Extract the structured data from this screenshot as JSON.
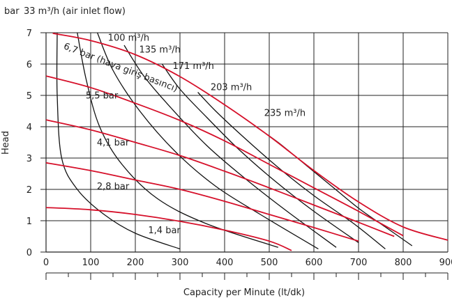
{
  "chart_data": {
    "type": "line",
    "title": "",
    "top_label_unit": "bar",
    "top_label_note": "33 m³/h (air inlet flow)",
    "xlabel": "Capacity per Minute (lt/dk)",
    "ylabel": "Head",
    "xlim": [
      0,
      900
    ],
    "ylim": [
      0,
      7
    ],
    "x_ticks": [
      0,
      100,
      200,
      300,
      400,
      500,
      600,
      700,
      800,
      900
    ],
    "y_ticks": [
      0,
      1,
      2,
      3,
      4,
      5,
      6,
      7
    ],
    "grid": true,
    "colors": {
      "pressure": "#d6102a",
      "airflow": "#111111",
      "grid": "#222222"
    },
    "pressure_curves": [
      {
        "label": "6,7 bar (hava giriş basıncı)",
        "points": [
          [
            15,
            6.98
          ],
          [
            100,
            6.75
          ],
          [
            200,
            6.3
          ],
          [
            300,
            5.6
          ],
          [
            400,
            4.7
          ],
          [
            500,
            3.7
          ],
          [
            600,
            2.6
          ],
          [
            700,
            1.6
          ],
          [
            800,
            0.8
          ],
          [
            900,
            0.38
          ]
        ]
      },
      {
        "label": "5,5 bar",
        "points": [
          [
            0,
            5.62
          ],
          [
            100,
            5.25
          ],
          [
            200,
            4.75
          ],
          [
            300,
            4.2
          ],
          [
            400,
            3.55
          ],
          [
            500,
            2.8
          ],
          [
            600,
            2.05
          ],
          [
            700,
            1.3
          ],
          [
            800,
            0.52
          ]
        ]
      },
      {
        "label": "4,1 bar",
        "points": [
          [
            0,
            4.22
          ],
          [
            100,
            3.9
          ],
          [
            200,
            3.5
          ],
          [
            300,
            3.08
          ],
          [
            400,
            2.58
          ],
          [
            500,
            2.05
          ],
          [
            600,
            1.5
          ],
          [
            700,
            0.95
          ],
          [
            780,
            0.5
          ]
        ]
      },
      {
        "label": "2,8 bar",
        "points": [
          [
            0,
            2.85
          ],
          [
            100,
            2.6
          ],
          [
            200,
            2.3
          ],
          [
            300,
            2.0
          ],
          [
            400,
            1.62
          ],
          [
            500,
            1.2
          ],
          [
            600,
            0.78
          ],
          [
            700,
            0.35
          ]
        ]
      },
      {
        "label": "1,4 bar",
        "points": [
          [
            0,
            1.42
          ],
          [
            100,
            1.35
          ],
          [
            200,
            1.2
          ],
          [
            300,
            0.98
          ],
          [
            400,
            0.7
          ],
          [
            500,
            0.35
          ],
          [
            550,
            0.05
          ]
        ]
      }
    ],
    "airflow_curves": [
      {
        "label": "33 m³/h",
        "points": [
          [
            25,
            7.0
          ],
          [
            25,
            5.0
          ],
          [
            35,
            3.0
          ],
          [
            70,
            2.0
          ],
          [
            130,
            1.2
          ],
          [
            200,
            0.6
          ],
          [
            300,
            0.1
          ]
        ]
      },
      {
        "label": "",
        "points": [
          [
            70,
            7.0
          ],
          [
            90,
            5.5
          ],
          [
            120,
            4.0
          ],
          [
            170,
            2.8
          ],
          [
            250,
            1.7
          ],
          [
            360,
            0.9
          ],
          [
            520,
            0.15
          ]
        ]
      },
      {
        "label": "100 m³/h",
        "points": [
          [
            115,
            7.0
          ],
          [
            150,
            5.8
          ],
          [
            210,
            4.5
          ],
          [
            290,
            3.2
          ],
          [
            380,
            2.1
          ],
          [
            480,
            1.2
          ],
          [
            610,
            0.1
          ]
        ]
      },
      {
        "label": "135 m³/h",
        "points": [
          [
            175,
            6.6
          ],
          [
            220,
            5.6
          ],
          [
            280,
            4.6
          ],
          [
            360,
            3.4
          ],
          [
            450,
            2.3
          ],
          [
            540,
            1.3
          ],
          [
            650,
            0.15
          ]
        ]
      },
      {
        "label": "171 m³/h",
        "points": [
          [
            260,
            6.0
          ],
          [
            300,
            5.2
          ],
          [
            360,
            4.3
          ],
          [
            430,
            3.3
          ],
          [
            510,
            2.3
          ],
          [
            600,
            1.3
          ],
          [
            700,
            0.3
          ]
        ]
      },
      {
        "label": "203 m³/h",
        "points": [
          [
            340,
            5.1
          ],
          [
            380,
            4.5
          ],
          [
            440,
            3.7
          ],
          [
            520,
            2.7
          ],
          [
            600,
            1.8
          ],
          [
            690,
            0.9
          ],
          [
            760,
            0.1
          ]
        ]
      },
      {
        "label": "235 m³/h",
        "points": [
          [
            470,
            4.0
          ],
          [
            520,
            3.5
          ],
          [
            580,
            2.8
          ],
          [
            640,
            2.1
          ],
          [
            700,
            1.4
          ],
          [
            760,
            0.8
          ],
          [
            820,
            0.2
          ]
        ]
      }
    ],
    "annotations": [
      {
        "text": "100 m³/h",
        "x": 185,
        "y": 6.75
      },
      {
        "text": "135 m³/h",
        "x": 255,
        "y": 6.37
      },
      {
        "text": "171 m³/h",
        "x": 330,
        "y": 5.85
      },
      {
        "text": "203 m³/h",
        "x": 415,
        "y": 5.17
      },
      {
        "text": "235 m³/h",
        "x": 535,
        "y": 4.35
      },
      {
        "text": "5,5 bar",
        "x": 125,
        "y": 4.9
      },
      {
        "text": "4,1 bar",
        "x": 150,
        "y": 3.4
      },
      {
        "text": "2,8 bar",
        "x": 150,
        "y": 2.0
      },
      {
        "text": "1,4 bar",
        "x": 265,
        "y": 0.6
      }
    ]
  }
}
